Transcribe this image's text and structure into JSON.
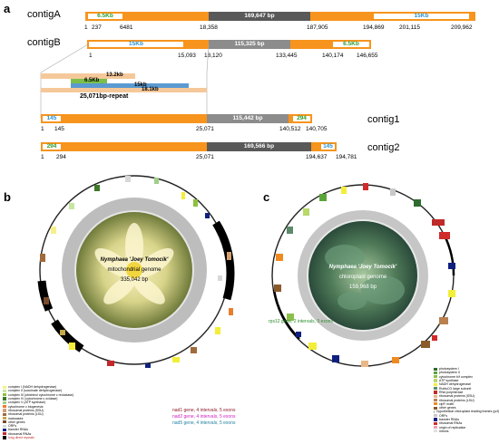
{
  "panels": {
    "a": "a",
    "b": "b",
    "c": "c"
  },
  "contigA": {
    "label": "contigA",
    "seg1": "6.5Kb",
    "seg2": "169,647 bp",
    "seg3": "15Kb",
    "ticks": [
      "1",
      "237",
      "6481",
      "18,358",
      "187,905",
      "194,869",
      "201,115",
      "209,962"
    ]
  },
  "contigB": {
    "label": "contigB",
    "seg1": "15Kb",
    "seg2": "115,325 bp",
    "seg3": "6.5Kb",
    "ticks": [
      "1",
      "15,093",
      "18,120",
      "133,445",
      "140,174",
      "146,655"
    ]
  },
  "repeat": {
    "b1": "13.2kb",
    "b2": "6.5Kb",
    "b3": "15kb",
    "b4": "18.1kb",
    "label": "25,071bp-repeat"
  },
  "contig1": {
    "label": "contig1",
    "seg1": "145",
    "seg2": "115,442 bp",
    "seg3": "294",
    "ticks": [
      "1",
      "145",
      "25,071",
      "140,512",
      "140,705"
    ]
  },
  "contig2": {
    "label": "contig2",
    "seg1": "294",
    "seg2": "169,566 bp",
    "seg3": "145",
    "ticks": [
      "1",
      "294",
      "25,071",
      "194,637",
      "194,781"
    ]
  },
  "mito": {
    "species": "Nymphaea 'Joey Tomocik'",
    "genome": "mitochondrial genome",
    "size": "335,042 bp",
    "legend": [
      {
        "label": "complex I (NADH dehydrogenase)",
        "color": "#f5f08a"
      },
      {
        "label": "complex II (succinate dehydrogenase)",
        "color": "#c8e6a0"
      },
      {
        "label": "complex III (ubichinol cytochrome c reductase)",
        "color": "#8fbf3f"
      },
      {
        "label": "complex IV (cytochrome c oxidase)",
        "color": "#3d7a2a"
      },
      {
        "label": "complex V (ATP synthase)",
        "color": "#9fd08a"
      },
      {
        "label": "cytochrome c biogenesis",
        "color": "#e87e2c"
      },
      {
        "label": "ribosomal proteins (SSU)",
        "color": "#d4a070"
      },
      {
        "label": "ribosomal proteins (LSU)",
        "color": "#a06a3a"
      },
      {
        "label": "maturases",
        "color": "#c4a84a"
      },
      {
        "label": "other genes",
        "color": "#7a4a2a"
      },
      {
        "label": "ORFs",
        "color": "#d8d8d8"
      },
      {
        "label": "transfer RNAs",
        "color": "#102080"
      },
      {
        "label": "ribosomal RNAs",
        "color": "#c0282a"
      },
      {
        "label": "long direct repeats",
        "color": "#000000"
      }
    ],
    "notes": [
      {
        "text": "nad1 gene, 4 intervals, 5 exons",
        "color": "#8b1a2a"
      },
      {
        "text": "nad2 gene, 4 intervals, 5 exons",
        "color": "#d020c0"
      },
      {
        "text": "nad5 gene, 4 intervals, 5 exons",
        "color": "#2080a0"
      }
    ]
  },
  "chloro": {
    "species": "Nymphaea 'Joey Tomocik'",
    "genome": "chloroplast genome",
    "size": "159,968 bp",
    "note": {
      "text": "rps12 gene, 2 intervals, 3 exons",
      "color": "#2a8a2a"
    },
    "legend": [
      {
        "label": "photosystem I",
        "color": "#2e6b2e"
      },
      {
        "label": "photosystem II",
        "color": "#5aa53a"
      },
      {
        "label": "cytochrome b/f complex",
        "color": "#8cbf4a"
      },
      {
        "label": "ATP synthase",
        "color": "#b8d86a"
      },
      {
        "label": "NADH dehydrogenase",
        "color": "#f2ee3a"
      },
      {
        "label": "RubisCO large subunit",
        "color": "#5c8a6a"
      },
      {
        "label": "RNA polymerase",
        "color": "#c02a2a"
      },
      {
        "label": "ribosomal proteins (SSU)",
        "color": "#e8b888"
      },
      {
        "label": "ribosomal proteins (LSU)",
        "color": "#b88050"
      },
      {
        "label": "clpP, matK",
        "color": "#f08a20"
      },
      {
        "label": "other genes",
        "color": "#8a5a2a"
      },
      {
        "label": "hypothetical chloroplast reading frames (ycf)",
        "color": "#a8c0a0"
      },
      {
        "label": "ORFs",
        "color": "#c8c8c8"
      },
      {
        "label": "transfer RNAs",
        "color": "#102080"
      },
      {
        "label": "ribosomal RNAs",
        "color": "#d02a2a"
      },
      {
        "label": "origin of replication",
        "color": "#eaa0b0"
      },
      {
        "label": "introns",
        "color": "#e0e0e0"
      }
    ]
  },
  "colors": {
    "orange": "#f7941d",
    "darkgray": "#595959",
    "midgray": "#8c8c8c",
    "green": "#2e9c2e",
    "blue": "#2a8fd0"
  }
}
